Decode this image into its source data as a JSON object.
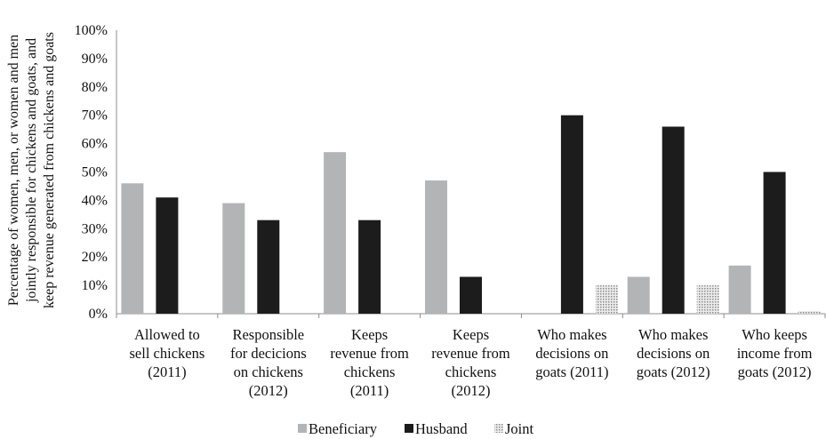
{
  "chart_data": {
    "type": "bar",
    "ylabel_lines": [
      "Percentage of women, men, or women and men",
      "jointly responsible for chickens and goats, and",
      "keep revenue generated from chickens and goats"
    ],
    "ylim": [
      0,
      100
    ],
    "yticks": [
      "0%",
      "10%",
      "20%",
      "30%",
      "40%",
      "50%",
      "60%",
      "70%",
      "80%",
      "90%",
      "100%"
    ],
    "grid": false,
    "legend_position": "bottom",
    "categories": [
      [
        "Allowed to",
        "sell chickens",
        "(2011)"
      ],
      [
        "Responsible",
        "for decicions",
        "on chickens",
        "(2012)"
      ],
      [
        "Keeps",
        "revenue from",
        "chickens",
        "(2011)"
      ],
      [
        "Keeps",
        "revenue from",
        "chickens",
        "(2012)"
      ],
      [
        "Who makes",
        "decisions on",
        "goats (2011)"
      ],
      [
        "Who makes",
        "decisions on",
        "goats (2012)"
      ],
      [
        "Who keeps",
        "income from",
        "goats (2012)"
      ]
    ],
    "series": [
      {
        "name": "Beneficiary",
        "color": "#b3b4b6",
        "values": [
          46,
          39,
          57,
          47,
          0,
          13,
          17
        ]
      },
      {
        "name": "Husband",
        "color": "#1c1c1c",
        "values": [
          41,
          33,
          33,
          13,
          70,
          66,
          50
        ]
      },
      {
        "name": "Joint",
        "color": "#d9d9d9",
        "pattern": "dotted",
        "values": [
          0,
          0,
          0,
          0,
          10,
          10,
          1
        ]
      }
    ]
  }
}
